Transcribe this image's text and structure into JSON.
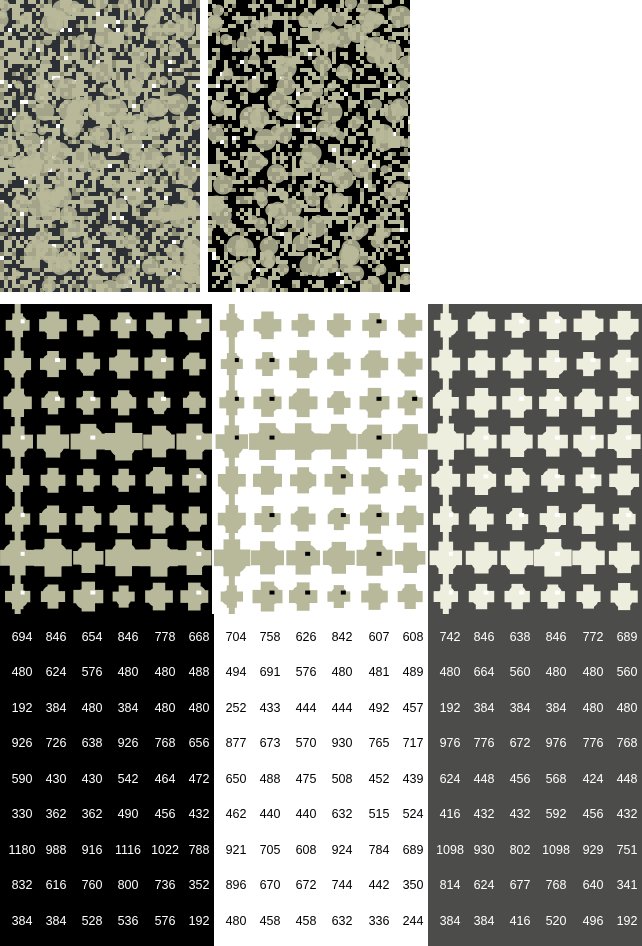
{
  "colors": {
    "background": "#ffffff",
    "blob_olive": "#b8b89a",
    "blob_olive_dark": "#8e8e74",
    "blob_cream": "#eeeede",
    "panel_black": "#000000",
    "panel_white": "#ffffff",
    "panel_gray": "#4c4c4a",
    "text_on_dark": "#ffffff",
    "text_on_light": "#000000"
  },
  "tables": [
    {
      "name": "left",
      "theme": "dark",
      "rows": [
        [
          "694",
          "846",
          "654",
          "846",
          "778",
          "668"
        ],
        [
          "480",
          "624",
          "576",
          "480",
          "480",
          "488"
        ],
        [
          "192",
          "384",
          "480",
          "384",
          "480",
          "480"
        ],
        [
          "926",
          "726",
          "638",
          "926",
          "768",
          "656"
        ],
        [
          "590",
          "430",
          "430",
          "542",
          "464",
          "472"
        ],
        [
          "330",
          "362",
          "362",
          "490",
          "456",
          "432"
        ],
        [
          "1180",
          "988",
          "916",
          "1116",
          "1022",
          "788"
        ],
        [
          "832",
          "616",
          "760",
          "800",
          "736",
          "352"
        ],
        [
          "384",
          "384",
          "528",
          "536",
          "576",
          "192"
        ]
      ]
    },
    {
      "name": "middle",
      "theme": "light",
      "rows": [
        [
          "704",
          "758",
          "626",
          "842",
          "607",
          "608"
        ],
        [
          "494",
          "691",
          "576",
          "480",
          "481",
          "489"
        ],
        [
          "252",
          "433",
          "444",
          "444",
          "492",
          "457"
        ],
        [
          "877",
          "673",
          "570",
          "930",
          "765",
          "717"
        ],
        [
          "650",
          "488",
          "475",
          "508",
          "452",
          "439"
        ],
        [
          "462",
          "440",
          "440",
          "632",
          "515",
          "524"
        ],
        [
          "921",
          "705",
          "608",
          "924",
          "784",
          "689"
        ],
        [
          "896",
          "670",
          "672",
          "744",
          "442",
          "350"
        ],
        [
          "480",
          "458",
          "458",
          "632",
          "336",
          "244"
        ]
      ]
    },
    {
      "name": "right",
      "theme": "gray",
      "rows": [
        [
          "742",
          "846",
          "638",
          "846",
          "772",
          "689"
        ],
        [
          "480",
          "664",
          "560",
          "480",
          "480",
          "560"
        ],
        [
          "192",
          "384",
          "384",
          "384",
          "480",
          "480"
        ],
        [
          "976",
          "776",
          "672",
          "976",
          "776",
          "768"
        ],
        [
          "624",
          "448",
          "456",
          "568",
          "424",
          "448"
        ],
        [
          "416",
          "432",
          "432",
          "592",
          "456",
          "432"
        ],
        [
          "1098",
          "930",
          "802",
          "1098",
          "929",
          "751"
        ],
        [
          "814",
          "624",
          "677",
          "768",
          "640",
          "341"
        ],
        [
          "384",
          "384",
          "416",
          "520",
          "496",
          "192"
        ]
      ]
    }
  ]
}
